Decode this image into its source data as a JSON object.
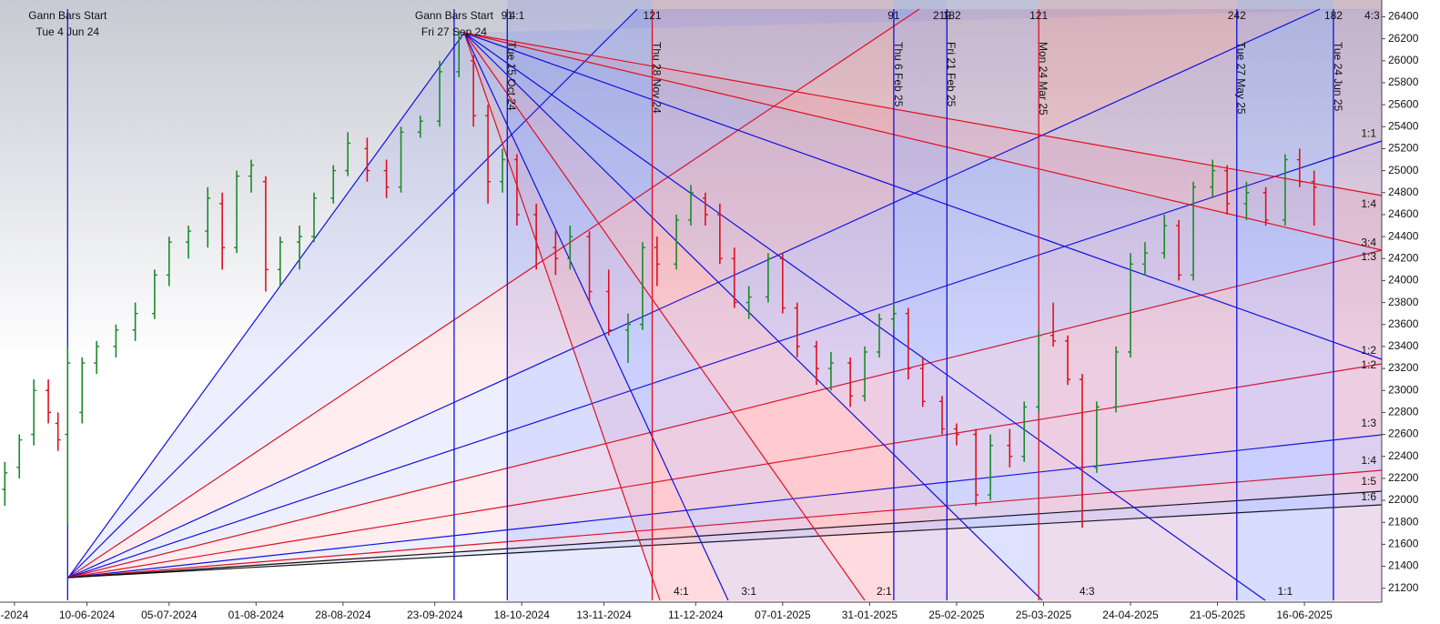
{
  "chart_data": {
    "type": "ohlc",
    "x": [
      -13,
      -10,
      -7,
      -4,
      -2,
      0,
      3,
      6,
      10,
      14,
      18,
      21,
      25,
      29,
      32,
      35,
      38,
      41,
      44,
      48,
      51,
      55,
      58,
      62,
      66,
      69,
      73,
      77,
      81,
      84,
      87,
      90,
      93,
      97,
      101,
      104,
      108,
      112,
      116,
      119,
      122,
      126,
      129,
      132,
      135,
      138,
      141,
      145,
      148,
      151,
      155,
      158,
      162,
      165,
      168,
      171,
      174,
      177,
      181,
      184,
      188,
      191,
      195,
      198,
      201,
      204,
      207,
      210,
      213,
      217,
      220,
      223,
      227,
      230,
      233,
      237,
      240,
      244,
      248,
      252,
      255,
      258
    ],
    "open": [
      22100,
      22300,
      22600,
      23000,
      22700,
      22600,
      22800,
      23250,
      23400,
      23550,
      23700,
      24050,
      24350,
      24450,
      24700,
      24300,
      24950,
      24900,
      24100,
      24350,
      24400,
      24750,
      25000,
      25200,
      25000,
      24850,
      25350,
      25450,
      25900,
      26000,
      25500,
      24900,
      25100,
      24600,
      24300,
      24200,
      24400,
      23900,
      23550,
      23600,
      24300,
      24150,
      24550,
      24750,
      24600,
      24200,
      23800,
      23850,
      24200,
      23750,
      23400,
      23200,
      23250,
      22950,
      23350,
      23650,
      23700,
      23200,
      22900,
      22650,
      22600,
      22050,
      22500,
      22400,
      22850,
      23500,
      23450,
      23100,
      22300,
      22850,
      23350,
      24150,
      24250,
      24500,
      24050,
      24850,
      25000,
      24700,
      24800,
      24550,
      25100,
      24900
    ],
    "high": [
      22350,
      22600,
      23100,
      23100,
      22800,
      23400,
      23300,
      23450,
      23600,
      23800,
      24100,
      24400,
      24500,
      24850,
      24800,
      25000,
      25100,
      24950,
      24400,
      24500,
      24800,
      25050,
      25350,
      25300,
      25100,
      25400,
      25500,
      26000,
      26277,
      26050,
      25600,
      25200,
      25150,
      24700,
      24450,
      24500,
      24450,
      24100,
      23700,
      24350,
      24400,
      24600,
      24870,
      24800,
      24700,
      24300,
      23950,
      24250,
      24250,
      23800,
      23450,
      23350,
      23300,
      23400,
      23700,
      23800,
      23750,
      23300,
      22950,
      22700,
      22650,
      22600,
      22650,
      22900,
      23550,
      23800,
      23500,
      23150,
      22900,
      23400,
      24250,
      24350,
      24600,
      24550,
      24900,
      25100,
      25050,
      24900,
      24850,
      25150,
      25200,
      25000
    ],
    "low": [
      21950,
      22200,
      22500,
      22700,
      22450,
      21780,
      22700,
      23150,
      23300,
      23450,
      23650,
      23950,
      24200,
      24300,
      24100,
      24250,
      24800,
      23900,
      23950,
      24100,
      24350,
      24700,
      24950,
      24900,
      24750,
      24800,
      25300,
      25400,
      25850,
      25400,
      24700,
      24800,
      24500,
      24100,
      24050,
      24100,
      23800,
      23500,
      23250,
      23550,
      23950,
      24100,
      24500,
      24500,
      24150,
      23750,
      23650,
      23800,
      23700,
      23300,
      23050,
      23000,
      22850,
      22900,
      23300,
      23550,
      23100,
      22850,
      22600,
      22500,
      21950,
      22000,
      22300,
      22350,
      22800,
      23400,
      23050,
      21750,
      22250,
      22800,
      23300,
      24050,
      24200,
      24000,
      24000,
      24750,
      24600,
      24550,
      24500,
      24500,
      24850,
      24500
    ],
    "close": [
      22250,
      22550,
      23000,
      22800,
      22550,
      23250,
      23250,
      23400,
      23550,
      23700,
      24050,
      24350,
      24450,
      24750,
      24300,
      24950,
      25050,
      24100,
      24350,
      24400,
      24750,
      25000,
      25250,
      25000,
      24850,
      25350,
      25450,
      25900,
      26200,
      25500,
      24900,
      25100,
      24600,
      24300,
      24200,
      24400,
      23900,
      23550,
      23600,
      24300,
      24150,
      24550,
      24800,
      24600,
      24200,
      23800,
      23850,
      24200,
      23750,
      23400,
      23200,
      23250,
      22950,
      23350,
      23650,
      23700,
      23200,
      22900,
      22650,
      22600,
      22050,
      22500,
      22400,
      22850,
      23500,
      23450,
      23100,
      22300,
      22850,
      23350,
      24150,
      24250,
      24500,
      24050,
      24850,
      25000,
      24700,
      24800,
      24550,
      25100,
      24900,
      24850
    ],
    "up_color": "#1a8a2a",
    "down_color": "#e01020",
    "xlim": [
      -14,
      272
    ],
    "xticks": [
      {
        "value": -11,
        "label": "-2024"
      },
      {
        "value": 4,
        "label": "10-06-2024"
      },
      {
        "value": 21,
        "label": "05-07-2024"
      },
      {
        "value": 39,
        "label": "01-08-2024"
      },
      {
        "value": 57,
        "label": "28-08-2024"
      },
      {
        "value": 76,
        "label": "23-09-2024"
      },
      {
        "value": 94,
        "label": "18-10-2024"
      },
      {
        "value": 111,
        "label": "13-11-2024"
      },
      {
        "value": 130,
        "label": "11-12-2024"
      },
      {
        "value": 148,
        "label": "07-01-2025"
      },
      {
        "value": 166,
        "label": "31-01-2025"
      },
      {
        "value": 184,
        "label": "25-02-2025"
      },
      {
        "value": 202,
        "label": "25-03-2025"
      },
      {
        "value": 220,
        "label": "24-04-2025"
      },
      {
        "value": 238,
        "label": "21-05-2025"
      },
      {
        "value": 256,
        "label": "16-06-2025"
      }
    ],
    "ylim": [
      21090,
      26470
    ],
    "yticks": [
      21200,
      21400,
      21600,
      21800,
      22000,
      22200,
      22400,
      22600,
      22800,
      23000,
      23200,
      23400,
      23600,
      23800,
      24000,
      24200,
      24400,
      24600,
      24800,
      25000,
      25200,
      25400,
      25600,
      25800,
      26000,
      26200,
      26400
    ],
    "verticals": [
      {
        "x": 0,
        "title": "Gann Bars Start",
        "label": "Tue 4 Jun 24",
        "color": "#1010e0"
      },
      {
        "x": 80,
        "title": "Gann Bars Start",
        "label": "Fri 27 Sep 24",
        "color": "#1010e0"
      },
      {
        "x": 91,
        "label": "Tue 15 Oct 24",
        "color": "#1010e0"
      },
      {
        "x": 121,
        "label": "Thu 28 Nov 24",
        "color": "#e01020"
      },
      {
        "x": 171,
        "label": "Thu 6 Feb 25",
        "color": "#1010e0"
      },
      {
        "x": 182,
        "label": "Fri 21 Feb 25",
        "color": "#1010e0"
      },
      {
        "x": 201,
        "label": "Mon 24 Mar 25",
        "color": "#e01020"
      },
      {
        "x": 242,
        "label": "Tue 27 May 25",
        "color": "#1010e0"
      },
      {
        "x": 262,
        "label": "Tue 24 Jun 25",
        "color": "#1010e0"
      }
    ],
    "top_labels": [
      {
        "x": 91,
        "text": "91"
      },
      {
        "x": 93,
        "text": "4:1"
      },
      {
        "x": 121,
        "text": "121"
      },
      {
        "x": 171,
        "text": "91"
      },
      {
        "x": 181,
        "text": "212"
      },
      {
        "x": 183,
        "text": "182"
      },
      {
        "x": 201,
        "text": "121"
      },
      {
        "x": 242,
        "text": "242"
      },
      {
        "x": 262,
        "text": "182"
      },
      {
        "x": 270,
        "text": "4:3"
      }
    ],
    "right_labels": [
      {
        "y": 25334,
        "text": "1:1"
      },
      {
        "y": 24690,
        "text": "1:4"
      },
      {
        "y": 24342,
        "text": "3:4"
      },
      {
        "y": 24210,
        "text": "1:3"
      },
      {
        "y": 23359,
        "text": "1:2"
      },
      {
        "y": 23226,
        "text": "1:2"
      },
      {
        "y": 22697,
        "text": "1:3"
      },
      {
        "y": 22358,
        "text": "1:4"
      },
      {
        "y": 22168,
        "text": "1:5"
      },
      {
        "y": 22028,
        "text": "1:6"
      }
    ],
    "bottom_labels": [
      {
        "x": 127,
        "text": "4:1"
      },
      {
        "x": 141,
        "text": "3:1"
      },
      {
        "x": 169,
        "text": "2:1"
      },
      {
        "x": 211,
        "text": "4:3"
      },
      {
        "x": 252,
        "text": "1:1"
      }
    ]
  }
}
